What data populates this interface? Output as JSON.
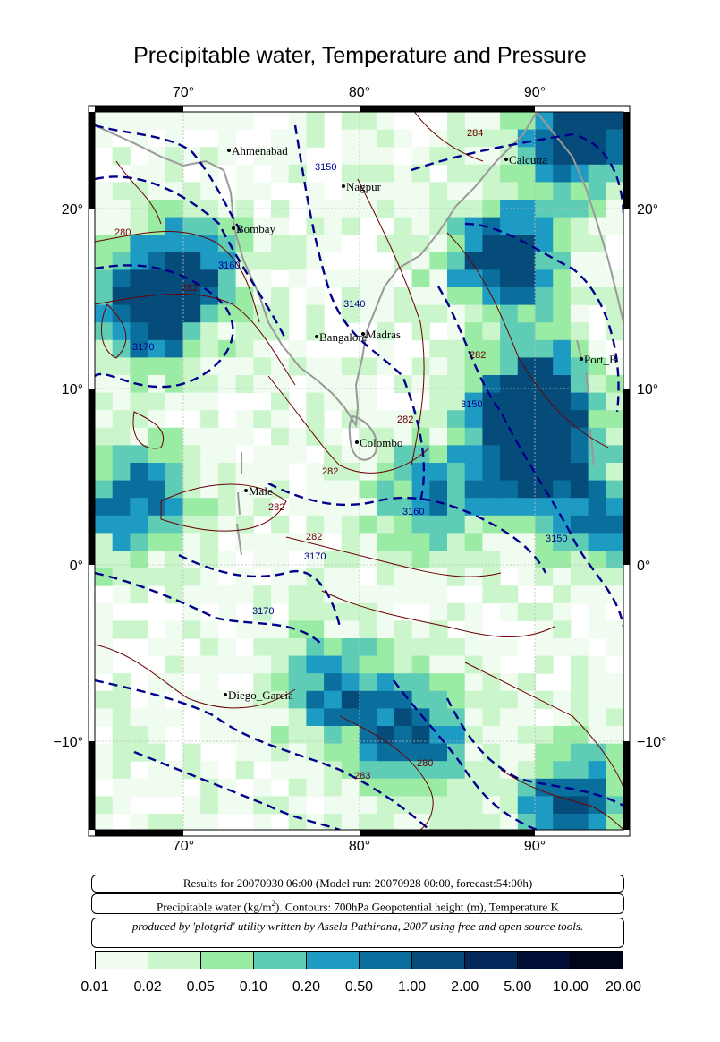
{
  "title": "Precipitable water, Temperature and Pressure",
  "axes": {
    "lon_labels": [
      "70°",
      "80°",
      "90°"
    ],
    "lat_labels": [
      "20°",
      "10°",
      "0°",
      "−10°"
    ]
  },
  "cities": [
    {
      "name": "Ahmenabad"
    },
    {
      "name": "Calcutta"
    },
    {
      "name": "Nagpur"
    },
    {
      "name": "Bombay"
    },
    {
      "name": "Madras"
    },
    {
      "name": "Bangalore"
    },
    {
      "name": "Port_B"
    },
    {
      "name": "Colombo"
    },
    {
      "name": "Male"
    },
    {
      "name": "Diego_Garcia"
    }
  ],
  "contour_labels": [
    "284",
    "3150",
    "280",
    "3160",
    "282",
    "3140",
    "3170",
    "282",
    "3150",
    "282",
    "282",
    "3160",
    "282",
    "3150",
    "3170",
    "3170",
    "282",
    "280",
    "283"
  ],
  "info": {
    "results": "Results for 20070930 06:00 (Model run: 20070928 00:00, forecast:54:00h)",
    "description_prefix": "Precipitable water (kg/m",
    "description_sup": "2",
    "description_suffix": ").  Contours: 700hPa Geopotential height (m), Temperature K",
    "credit": "produced by 'plotgrid' utility written by Assela Pathirana, 2007 using free and open source tools."
  },
  "colorbar": {
    "colors": [
      "#f0fcf0",
      "#cbf5cb",
      "#9aeba3",
      "#5fcdb5",
      "#1e9bc2",
      "#0b6f9e",
      "#064c7a",
      "#04285a",
      "#020f36",
      "#01051a"
    ],
    "labels": [
      "0.01",
      "0.02",
      "0.05",
      "0.10",
      "0.20",
      "0.50",
      "1.00",
      "2.00",
      "5.00",
      "10.00",
      "20.00"
    ]
  }
}
